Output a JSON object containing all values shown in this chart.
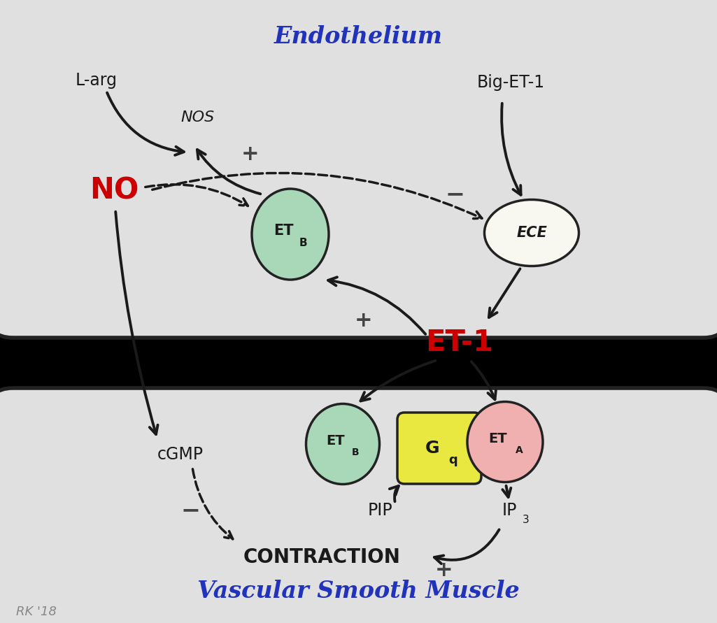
{
  "background_color": "#000000",
  "endothelium_bg": "#e0e0e0",
  "vsm_bg": "#e0e0e0",
  "cell_edge": "#222222",
  "title_endothelium": "Endothelium",
  "title_vsm": "Vascular Smooth Muscle",
  "title_color": "#2233bb",
  "title_fontsize": 24,
  "label_fontsize": 16,
  "ET1_color": "#cc0000",
  "NO_color": "#cc0000",
  "arrow_color": "#1a1a1a",
  "etb_fill": "#a8d8b8",
  "eta_fill": "#f0b0b0",
  "gq_fill": "#e8e840",
  "ece_fill": "#f8f8f0",
  "sign_color": "#444444",
  "watermark": "RK '18"
}
